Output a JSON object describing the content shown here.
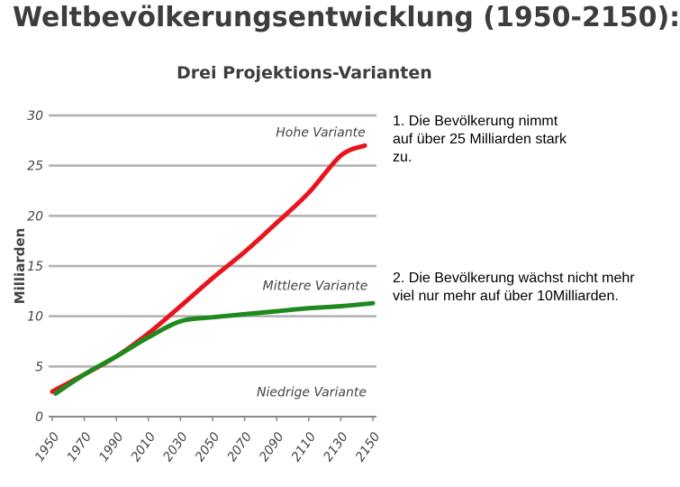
{
  "title": "Weltbevölkerungsentwicklung (1950-2150):",
  "subtitle": "Drei Projektions-Varianten",
  "notes": {
    "note1": "1. Die Bevölkerung nimmt auf über 25 Milliarden stark zu.",
    "note2": "2.  Die Bevölkerung wächst nicht mehr viel nur mehr auf über 10Milliarden."
  },
  "chart_data": {
    "type": "line",
    "title": "Weltbevölkerungsentwicklung (1950-2150):",
    "subtitle": "Drei Projektions-Varianten",
    "xlabel": "",
    "ylabel": "Milliarden",
    "xlim": [
      1950,
      2150
    ],
    "ylim": [
      0,
      30
    ],
    "x_ticks": [
      1950,
      1970,
      1990,
      2010,
      2030,
      2050,
      2070,
      2090,
      2110,
      2130,
      2150
    ],
    "y_ticks": [
      0,
      5,
      10,
      15,
      20,
      25,
      30
    ],
    "grid": true,
    "series": [
      {
        "name": "Hohe Variante",
        "color": "#e8141e",
        "x": [
          1950,
          1970,
          1990,
          2010,
          2030,
          2050,
          2070,
          2090,
          2110,
          2130,
          2145
        ],
        "y": [
          2.5,
          4.2,
          6.0,
          8.3,
          11.0,
          13.8,
          16.4,
          19.3,
          22.3,
          26.0,
          27.0
        ]
      },
      {
        "name": "Mittlere Variante",
        "color": "#1e8a1e",
        "x": [
          1952,
          1970,
          1990,
          2010,
          2030,
          2050,
          2070,
          2090,
          2110,
          2130,
          2150
        ],
        "y": [
          2.3,
          4.2,
          6.0,
          7.9,
          9.5,
          9.9,
          10.2,
          10.5,
          10.8,
          11.0,
          11.3
        ]
      }
    ],
    "annotations": [
      "Hohe Variante",
      "Mittlere Variante",
      "Niedrige Variante"
    ],
    "colors": {
      "grid": "#b0b0b0",
      "text": "#444444"
    }
  }
}
